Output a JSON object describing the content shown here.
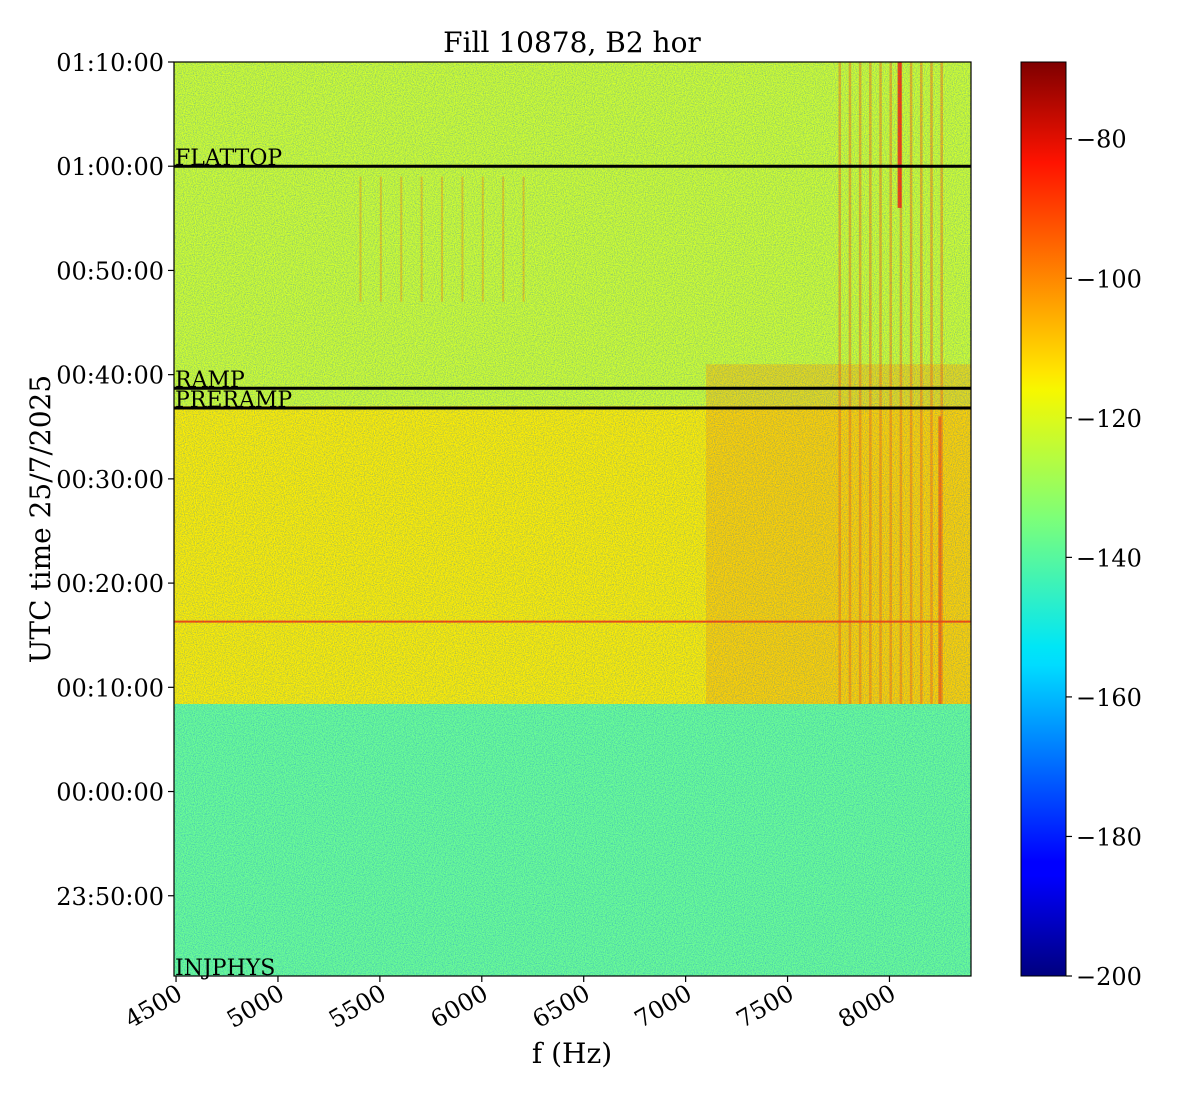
{
  "chart_data": {
    "type": "heatmap",
    "title": "Fill 10878, B2 hor",
    "xlabel": "f (Hz)",
    "ylabel": "UTC time 25/7/2025",
    "x_ticks": [
      "4500",
      "5000",
      "5500",
      "6000",
      "6500",
      "7000",
      "7500",
      "8000"
    ],
    "x_tick_values": [
      4500,
      5000,
      5500,
      6000,
      6500,
      7000,
      7500,
      8000
    ],
    "xlim": [
      4490,
      8400
    ],
    "y_ticks": [
      "23:50:00",
      "00:00:00",
      "00:10:00",
      "00:20:00",
      "00:30:00",
      "00:40:00",
      "00:50:00",
      "01:00:00",
      "01:10:00"
    ],
    "y_tick_values": [
      -10,
      0,
      10,
      20,
      30,
      40,
      50,
      60,
      70
    ],
    "ylim": [
      -17.7,
      70
    ],
    "y_units": "minutes after 00:00:00",
    "colorbar": {
      "colormap": "jet",
      "range": [
        -200,
        -69
      ],
      "ticks": [
        "−80",
        "−100",
        "−120",
        "−140",
        "−160",
        "−180",
        "−200"
      ],
      "tick_values": [
        -80,
        -100,
        -120,
        -140,
        -160,
        -180,
        -200
      ]
    },
    "regions": [
      {
        "from": -17.7,
        "to": 8.4,
        "level": -137
      },
      {
        "from": 8.4,
        "to": 37,
        "level": -116
      },
      {
        "from": 37,
        "to": 70,
        "level": -124
      }
    ],
    "phase_lines": [
      {
        "name": "FLATTOP",
        "time": 60
      },
      {
        "name": "RAMP",
        "time": 38.7
      },
      {
        "name": "PRERAMP",
        "time": 36.8
      },
      {
        "name": "INJPHYS",
        "time": -17.7
      }
    ],
    "red_line": {
      "time": 16.3,
      "level": -95
    }
  }
}
